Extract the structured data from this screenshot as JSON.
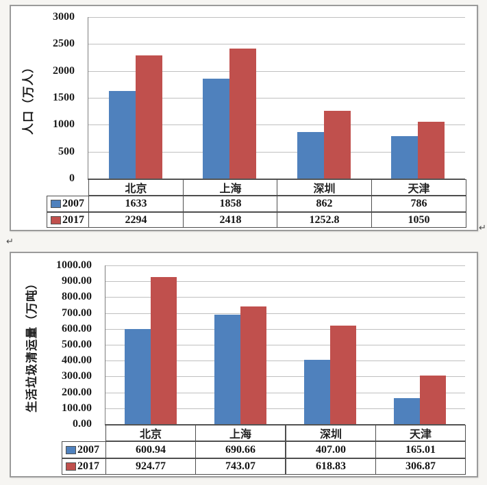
{
  "decorations": {
    "return_mark": "↵"
  },
  "colors": {
    "series_2007": "#4f81bd",
    "series_2017": "#c0504d",
    "gridline": "#bfbfbf",
    "axis": "#565656",
    "table_border": "#4d4d4d",
    "chart_background": "#ffffff",
    "page_background": "#f6f5f2",
    "text": "#1c1c1c"
  },
  "chart_data": [
    {
      "type": "bar",
      "title": "",
      "xlabel": "",
      "ylabel": "人口（万人）",
      "categories": [
        "北京",
        "上海",
        "深圳",
        "天津"
      ],
      "series": [
        {
          "name": "2007",
          "color": "#4f81bd",
          "values": [
            1633,
            1858,
            862,
            786
          ],
          "values_display": [
            "1633",
            "1858",
            "862",
            "786"
          ]
        },
        {
          "name": "2017",
          "color": "#c0504d",
          "values": [
            2294,
            2418,
            1252.8,
            1050
          ],
          "values_display": [
            "2294",
            "2418",
            "1252.8",
            "1050"
          ]
        }
      ],
      "ylim": [
        0,
        3000
      ],
      "ytick_labels": [
        "3000",
        "2500",
        "2000",
        "1500",
        "1000",
        "500",
        "0"
      ],
      "grid": true,
      "legend_position": "data-table-left"
    },
    {
      "type": "bar",
      "title": "",
      "xlabel": "",
      "ylabel": "生活垃圾清运量（万吨）",
      "categories": [
        "北京",
        "上海",
        "深圳",
        "天津"
      ],
      "series": [
        {
          "name": "2007",
          "color": "#4f81bd",
          "values": [
            600.94,
            690.66,
            407.0,
            165.01
          ],
          "values_display": [
            "600.94",
            "690.66",
            "407.00",
            "165.01"
          ]
        },
        {
          "name": "2017",
          "color": "#c0504d",
          "values": [
            924.77,
            743.07,
            618.83,
            306.87
          ],
          "values_display": [
            "924.77",
            "743.07",
            "618.83",
            "306.87"
          ]
        }
      ],
      "ylim": [
        0,
        1000
      ],
      "ytick_labels": [
        "1000.00",
        "900.00",
        "800.00",
        "700.00",
        "600.00",
        "500.00",
        "400.00",
        "300.00",
        "200.00",
        "100.00",
        "0.00"
      ],
      "grid": true,
      "legend_position": "data-table-left"
    }
  ]
}
